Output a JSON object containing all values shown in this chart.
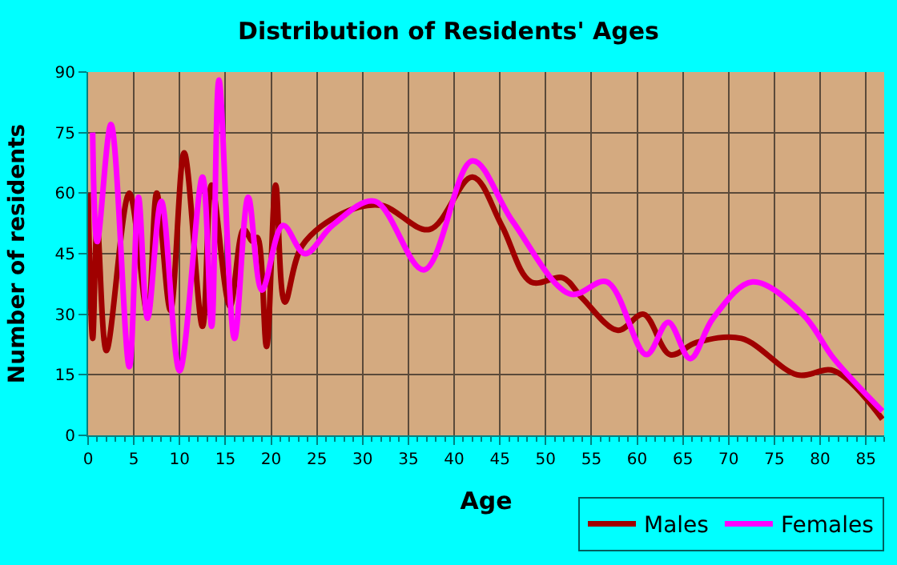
{
  "chart_data": {
    "type": "line",
    "title": "Distribution of Residents' Ages",
    "xlabel": "Age",
    "ylabel": "Number of residents",
    "xlim": [
      0,
      87
    ],
    "xticks": [
      0,
      5,
      10,
      15,
      20,
      25,
      30,
      35,
      40,
      45,
      50,
      55,
      60,
      65,
      70,
      75,
      80,
      85
    ],
    "ylim": [
      0,
      90
    ],
    "yticks": [
      0,
      15,
      30,
      45,
      60,
      75,
      90
    ],
    "grid": true,
    "legend": "bottom right",
    "marker": "none",
    "line_style": "solid",
    "series": [
      {
        "name": "Males",
        "color": "#a00000",
        "x": [
          0,
          0.5,
          1,
          2,
          4.5,
          6.5,
          7.5,
          9,
          10.5,
          12.5,
          13.5,
          15.5,
          17,
          18,
          18.5,
          19.5,
          20.5,
          21.5,
          23.4,
          27.8,
          32,
          37.3,
          42,
          45.2,
          48.4,
          51.9,
          54,
          57.9,
          60.7,
          63.6,
          66.5,
          71.4,
          77.5,
          81.5,
          86.8
        ],
        "values": [
          60,
          24,
          52,
          21,
          60,
          30,
          60,
          31,
          70,
          27,
          62,
          32,
          51,
          48,
          49,
          22,
          62,
          33,
          47,
          55,
          57,
          51,
          64,
          52,
          38,
          39,
          34,
          26,
          30,
          20,
          23,
          24,
          15,
          16,
          4
        ]
      },
      {
        "name": "Females",
        "color": "#ff00ff",
        "x": [
          0.5,
          1,
          2.5,
          4.5,
          5.5,
          6.5,
          8,
          10,
          12.5,
          13.5,
          14.3,
          16,
          17.5,
          19,
          21.3,
          23.7,
          26.7,
          31.3,
          36.7,
          42,
          46.4,
          52.7,
          56.7,
          61,
          63.4,
          65.8,
          68.3,
          72.6,
          78.1,
          81.5,
          86.8
        ],
        "values": [
          75,
          48,
          77,
          17,
          59,
          29,
          58,
          16,
          64,
          27,
          88,
          24,
          59,
          36,
          52,
          45,
          52,
          58,
          41,
          68,
          53,
          35,
          38,
          20,
          28,
          19,
          29,
          38,
          30,
          19,
          6
        ]
      }
    ]
  }
}
